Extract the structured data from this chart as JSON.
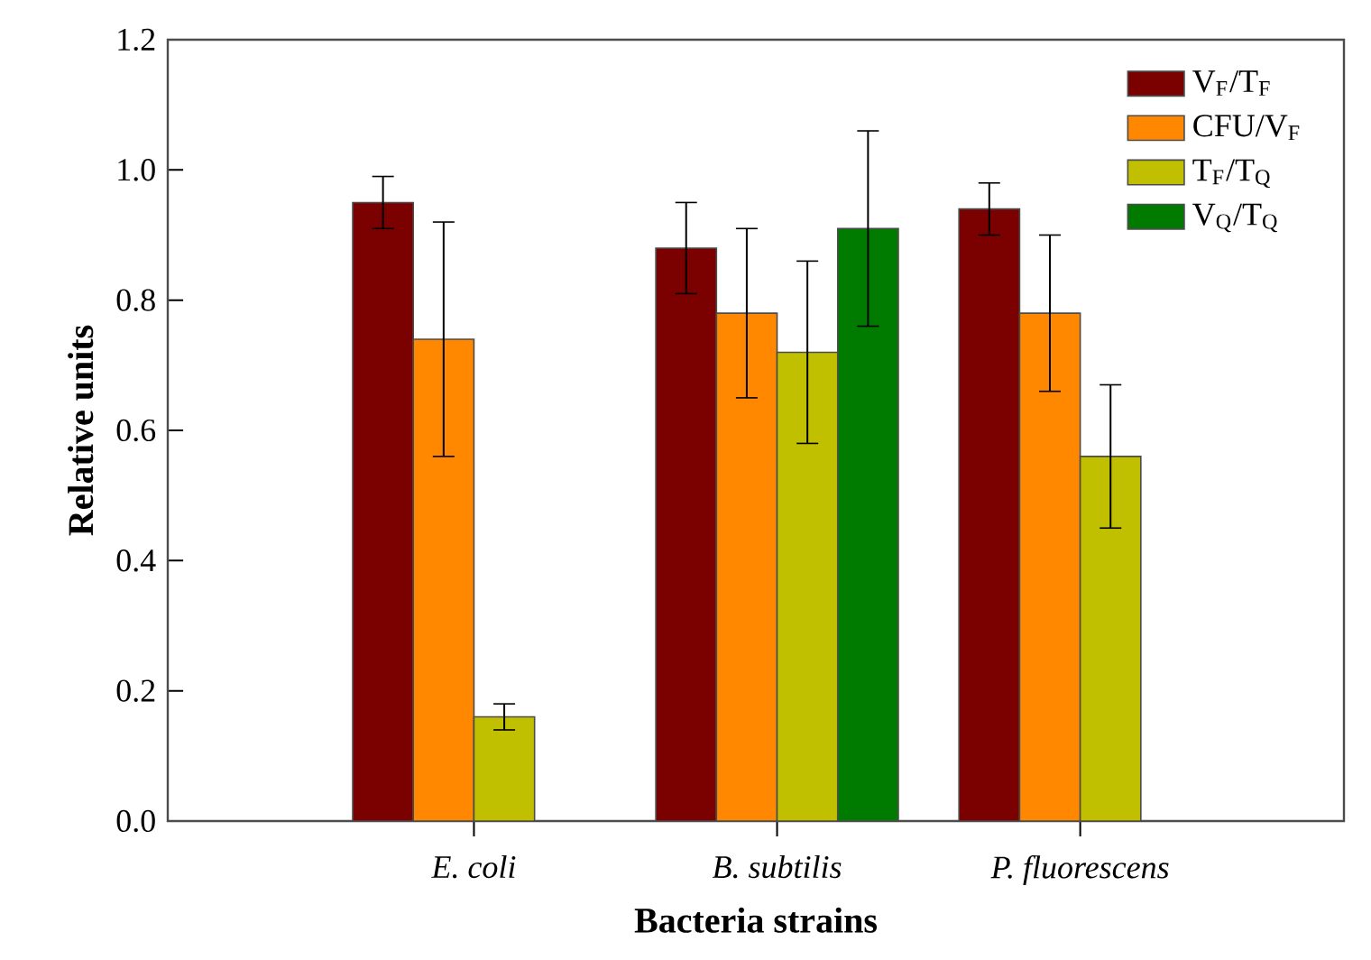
{
  "chart_data": {
    "type": "bar",
    "xlabel": "Bacteria strains",
    "ylabel": "Relative units",
    "categories": [
      "*E. coli*",
      "*B. subtilis*",
      "*P. fluorescens*"
    ],
    "series": [
      {
        "name": "V$_{F}$/T$_{F}$",
        "color": "#7b0000",
        "values": [
          0.95,
          0.88,
          0.94
        ],
        "errors": [
          0.04,
          0.07,
          0.04
        ]
      },
      {
        "name": "CFU/V$_{F}$",
        "color": "#ff8800",
        "values": [
          0.74,
          0.78,
          0.78
        ],
        "errors": [
          0.18,
          0.13,
          0.12
        ]
      },
      {
        "name": "T$_{F}$/T$_{Q}$",
        "color": "#c0c000",
        "values": [
          0.16,
          0.72,
          0.56
        ],
        "errors": [
          0.02,
          0.14,
          0.11
        ]
      },
      {
        "name": "V$_{Q}$/T$_{Q}$",
        "color": "#007b00",
        "values": [
          null,
          0.91,
          null
        ],
        "errors": [
          null,
          0.15,
          null
        ]
      }
    ],
    "ylim": [
      0,
      1.2
    ],
    "yticks": [
      {
        "value": 0,
        "label": "0.0"
      },
      0.2,
      0.4,
      0.6,
      0.8,
      {
        "value": 1,
        "label": "1.0"
      },
      1.2
    ],
    "legend": "top right"
  }
}
